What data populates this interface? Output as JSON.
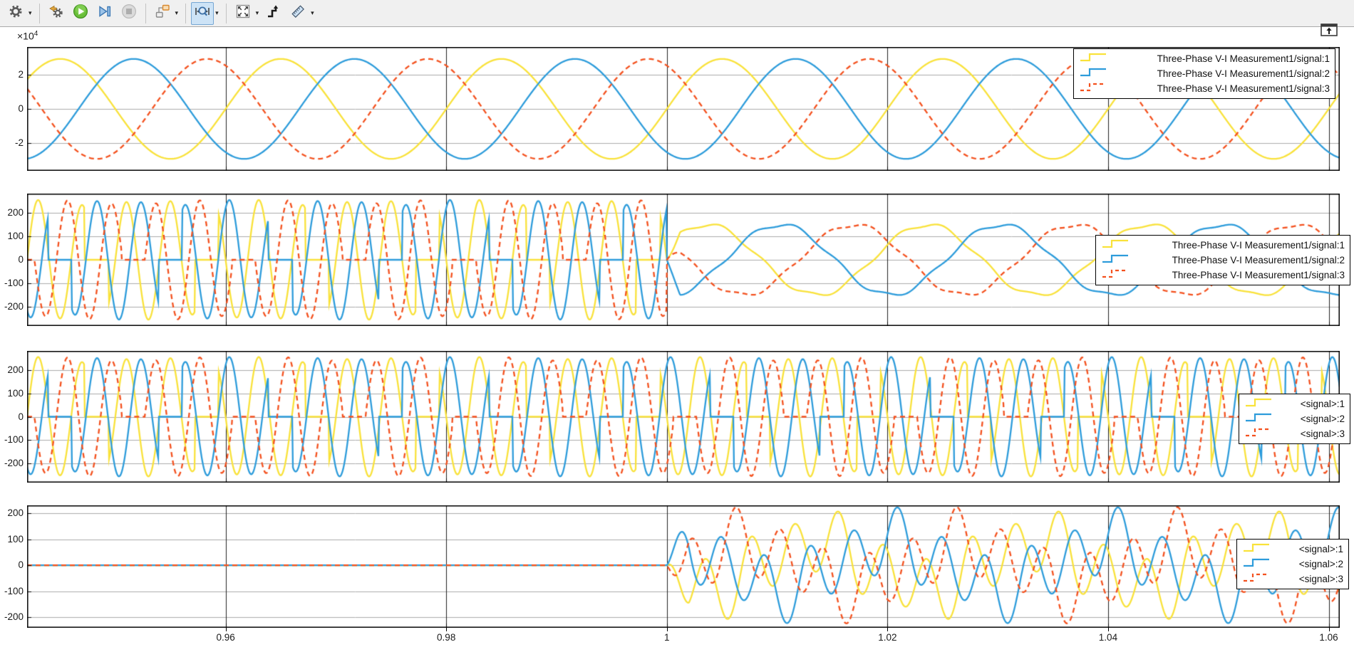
{
  "toolbar": {
    "items": [
      {
        "type": "button",
        "name": "scope-settings-button",
        "icon": "gear-icon",
        "dropdown": true
      },
      {
        "type": "separator"
      },
      {
        "type": "button",
        "name": "highlight-block-button",
        "icon": "gear-arrow-icon",
        "dropdown": false
      },
      {
        "type": "button",
        "name": "run-button",
        "icon": "play-icon",
        "dropdown": false
      },
      {
        "type": "button",
        "name": "step-forward-button",
        "icon": "step-forward-icon",
        "dropdown": false
      },
      {
        "type": "button",
        "name": "stop-button",
        "icon": "stop-icon",
        "dropdown": false,
        "disabled": true
      },
      {
        "type": "separator"
      },
      {
        "type": "button",
        "name": "signal-selector-button",
        "icon": "signal-blocks-icon",
        "dropdown": true
      },
      {
        "type": "separator"
      },
      {
        "type": "button",
        "name": "zoom-button",
        "icon": "zoom-xy-icon",
        "dropdown": true,
        "selected": true
      },
      {
        "type": "separator"
      },
      {
        "type": "button",
        "name": "fit-to-view-button",
        "icon": "fit-view-icon",
        "dropdown": true
      },
      {
        "type": "button",
        "name": "trigger-button",
        "icon": "trigger-step-icon",
        "dropdown": false
      },
      {
        "type": "button",
        "name": "measurements-button",
        "icon": "ruler-icon",
        "dropdown": true
      }
    ]
  },
  "window": {
    "dock_button_icon": "dock-icon"
  },
  "chart_data": {
    "type": "line",
    "title": "",
    "x_axis": {
      "xlim": [
        0.942,
        1.061
      ],
      "xticks": [
        {
          "label": "0.96",
          "value": 0.96
        },
        {
          "label": "0.98",
          "value": 0.98
        },
        {
          "label": "1",
          "value": 1
        },
        {
          "label": "1.02",
          "value": 1.02
        },
        {
          "label": "1.04",
          "value": 1.04
        },
        {
          "label": "1.06",
          "value": 1.06
        }
      ]
    },
    "colors": {
      "signal1": "#F9E23A",
      "signal2": "#2D9CDB",
      "signal3": "#F4511E",
      "grid_h": "#ACACAC",
      "grid_v": "#222222",
      "axis": "#000000",
      "background": "#FFFFFF"
    },
    "exponent": {
      "mantissa": "×10",
      "exponent": "4"
    },
    "panels": [
      {
        "name": "three-phase-voltage-plot",
        "ylim": [
          -36300,
          36300
        ],
        "yticks": [
          {
            "label": "2",
            "value": 20000
          },
          {
            "label": "0",
            "value": 0
          },
          {
            "label": "-2",
            "value": -20000
          }
        ],
        "legend": [
          "Three-Phase V-I Measurement1/signal:1",
          "Three-Phase V-I Measurement1/signal:2",
          "Three-Phase V-I Measurement1/signal:3"
        ],
        "series": [
          {
            "name": "Three-Phase V-I Measurement1/signal:1",
            "color": "signal1",
            "style": "solid",
            "gen": {
              "kind": "sine3",
              "k": 0,
              "amp": 29300,
              "freq": 50,
              "peak_t": 0.945
            }
          },
          {
            "name": "Three-Phase V-I Measurement1/signal:2",
            "color": "signal2",
            "style": "solid",
            "gen": {
              "kind": "sine3",
              "k": 1,
              "amp": 29300,
              "freq": 50,
              "peak_t": 0.945
            }
          },
          {
            "name": "Three-Phase V-I Measurement1/signal:3",
            "color": "signal3",
            "style": "dashed",
            "gen": {
              "kind": "sine3",
              "k": 2,
              "amp": 29300,
              "freq": 50,
              "peak_t": 0.945
            }
          }
        ]
      },
      {
        "name": "three-phase-current-plot",
        "ylim": [
          -282,
          282
        ],
        "yticks": [
          {
            "label": "200",
            "value": 200
          },
          {
            "label": "100",
            "value": 100
          },
          {
            "label": "0",
            "value": 0
          },
          {
            "label": "-100",
            "value": -100
          },
          {
            "label": "-200",
            "value": -200
          }
        ],
        "legend": [
          "Three-Phase V-I Measurement1/signal:1",
          "Three-Phase V-I Measurement1/signal:2",
          "Three-Phase V-I Measurement1/signal:3"
        ],
        "series": [
          {
            "name": "Three-Phase V-I Measurement1/signal:1",
            "color": "signal1",
            "style": "solid",
            "gen": {
              "kind": "fault",
              "k": 0,
              "amp_pre": 255,
              "freq_pre": 250,
              "t0": 0.942,
              "gate_freq": 50,
              "gate_t0": 0.9483,
              "gate_thresh": 0.33,
              "t_fault": 1,
              "amp_post": 150,
              "freq_post": 50,
              "phase_post": 0.44,
              "ripple": 9
            }
          },
          {
            "name": "Three-Phase V-I Measurement1/signal:2",
            "color": "signal2",
            "style": "solid",
            "gen": {
              "kind": "fault",
              "k": 1,
              "amp_pre": 255,
              "freq_pre": 250,
              "t0": 0.942,
              "gate_freq": 50,
              "gate_t0": 0.9483,
              "gate_thresh": 0.33,
              "t_fault": 1,
              "amp_post": 150,
              "freq_post": 50,
              "phase_post": 0.44,
              "ripple": 9
            }
          },
          {
            "name": "Three-Phase V-I Measurement1/signal:3",
            "color": "signal3",
            "style": "dashed",
            "gen": {
              "kind": "fault",
              "k": 2,
              "amp_pre": 255,
              "freq_pre": 250,
              "t0": 0.942,
              "gate_freq": 50,
              "gate_t0": 0.9483,
              "gate_thresh": 0.33,
              "t_fault": 1,
              "amp_post": 150,
              "freq_post": 50,
              "phase_post": 0.44,
              "ripple": 9
            }
          }
        ]
      },
      {
        "name": "signal-plot-3",
        "ylim": [
          -281,
          281
        ],
        "yticks": [
          {
            "label": "200",
            "value": 200
          },
          {
            "label": "100",
            "value": 100
          },
          {
            "label": "0",
            "value": 0
          },
          {
            "label": "-100",
            "value": -100
          },
          {
            "label": "-200",
            "value": -200
          }
        ],
        "legend": [
          "<signal>:1",
          "<signal>:2",
          "<signal>:3"
        ],
        "series": [
          {
            "name": "<signal>:1",
            "color": "signal1",
            "style": "solid",
            "gen": {
              "kind": "gated250",
              "k": 0,
              "amp": 255,
              "freq": 250,
              "t0": 0.942,
              "gate_freq": 50,
              "gate_t0": 0.9483,
              "gate_thresh": 0.33
            }
          },
          {
            "name": "<signal>:2",
            "color": "signal2",
            "style": "solid",
            "gen": {
              "kind": "gated250",
              "k": 1,
              "amp": 255,
              "freq": 250,
              "t0": 0.942,
              "gate_freq": 50,
              "gate_t0": 0.9483,
              "gate_thresh": 0.33
            }
          },
          {
            "name": "<signal>:3",
            "color": "signal3",
            "style": "dashed",
            "gen": {
              "kind": "gated250",
              "k": 2,
              "amp": 255,
              "freq": 250,
              "t0": 0.942,
              "gate_freq": 50,
              "gate_t0": 0.9483,
              "gate_thresh": 0.33
            }
          }
        ]
      },
      {
        "name": "signal-plot-4",
        "ylim": [
          -240,
          230
        ],
        "yticks": [
          {
            "label": "200",
            "value": 200
          },
          {
            "label": "100",
            "value": 100
          },
          {
            "label": "0",
            "value": 0
          },
          {
            "label": "-100",
            "value": -100
          },
          {
            "label": "-200",
            "value": -200
          }
        ],
        "legend": [
          "<signal>:1",
          "<signal>:2",
          "<signal>:3"
        ],
        "series": [
          {
            "name": "<signal>:1",
            "color": "signal1",
            "style": "solid",
            "gen": {
              "kind": "postmix",
              "k": 0,
              "t_fault": 1,
              "a1": 115,
              "a2": 85,
              "a3": 25
            }
          },
          {
            "name": "<signal>:2",
            "color": "signal2",
            "style": "solid",
            "gen": {
              "kind": "postmix",
              "k": 1,
              "t_fault": 1,
              "a1": 115,
              "a2": 85,
              "a3": 25
            }
          },
          {
            "name": "<signal>:3",
            "color": "signal3",
            "style": "dashed",
            "gen": {
              "kind": "postmix",
              "k": 2,
              "t_fault": 1,
              "a1": 115,
              "a2": 85,
              "a3": 25
            }
          }
        ]
      }
    ]
  }
}
